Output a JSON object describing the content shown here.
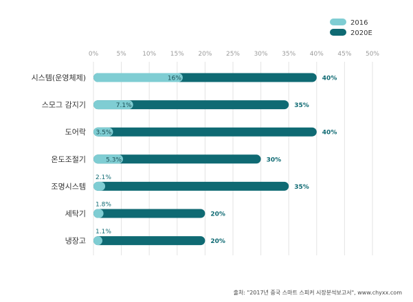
{
  "chart_data": {
    "type": "bar",
    "orientation": "horizontal",
    "categories": [
      "시스템(운영체제)",
      "스모그 감지기",
      "도어락",
      "온도조절기",
      "조명시스템",
      "세탁기",
      "냉장고"
    ],
    "series": [
      {
        "name": "2016",
        "values": [
          16,
          7.1,
          3.5,
          5.3,
          2.1,
          1.8,
          1.1
        ],
        "labels": [
          "16%",
          "7.1%",
          "3.5%",
          "5.3%",
          "2.1%",
          "1.8%",
          "1.1%"
        ],
        "color": "#7fcdd3"
      },
      {
        "name": "2020E",
        "values": [
          40,
          35,
          40,
          30,
          35,
          20,
          20
        ],
        "labels": [
          "40%",
          "35%",
          "40%",
          "30%",
          "35%",
          "20%",
          "20%"
        ],
        "color": "#0f6a73"
      }
    ],
    "xticks": [
      "0%",
      "5%",
      "10%",
      "15%",
      "20%",
      "25%",
      "30%",
      "35%",
      "40%",
      "45%",
      "50%"
    ],
    "xlim": [
      0,
      50
    ],
    "grid": true,
    "legend": "top-right",
    "source": "출처: \"2017년 중국 스마트 스피커 시장분석보고서\", www.chyxx.com"
  }
}
